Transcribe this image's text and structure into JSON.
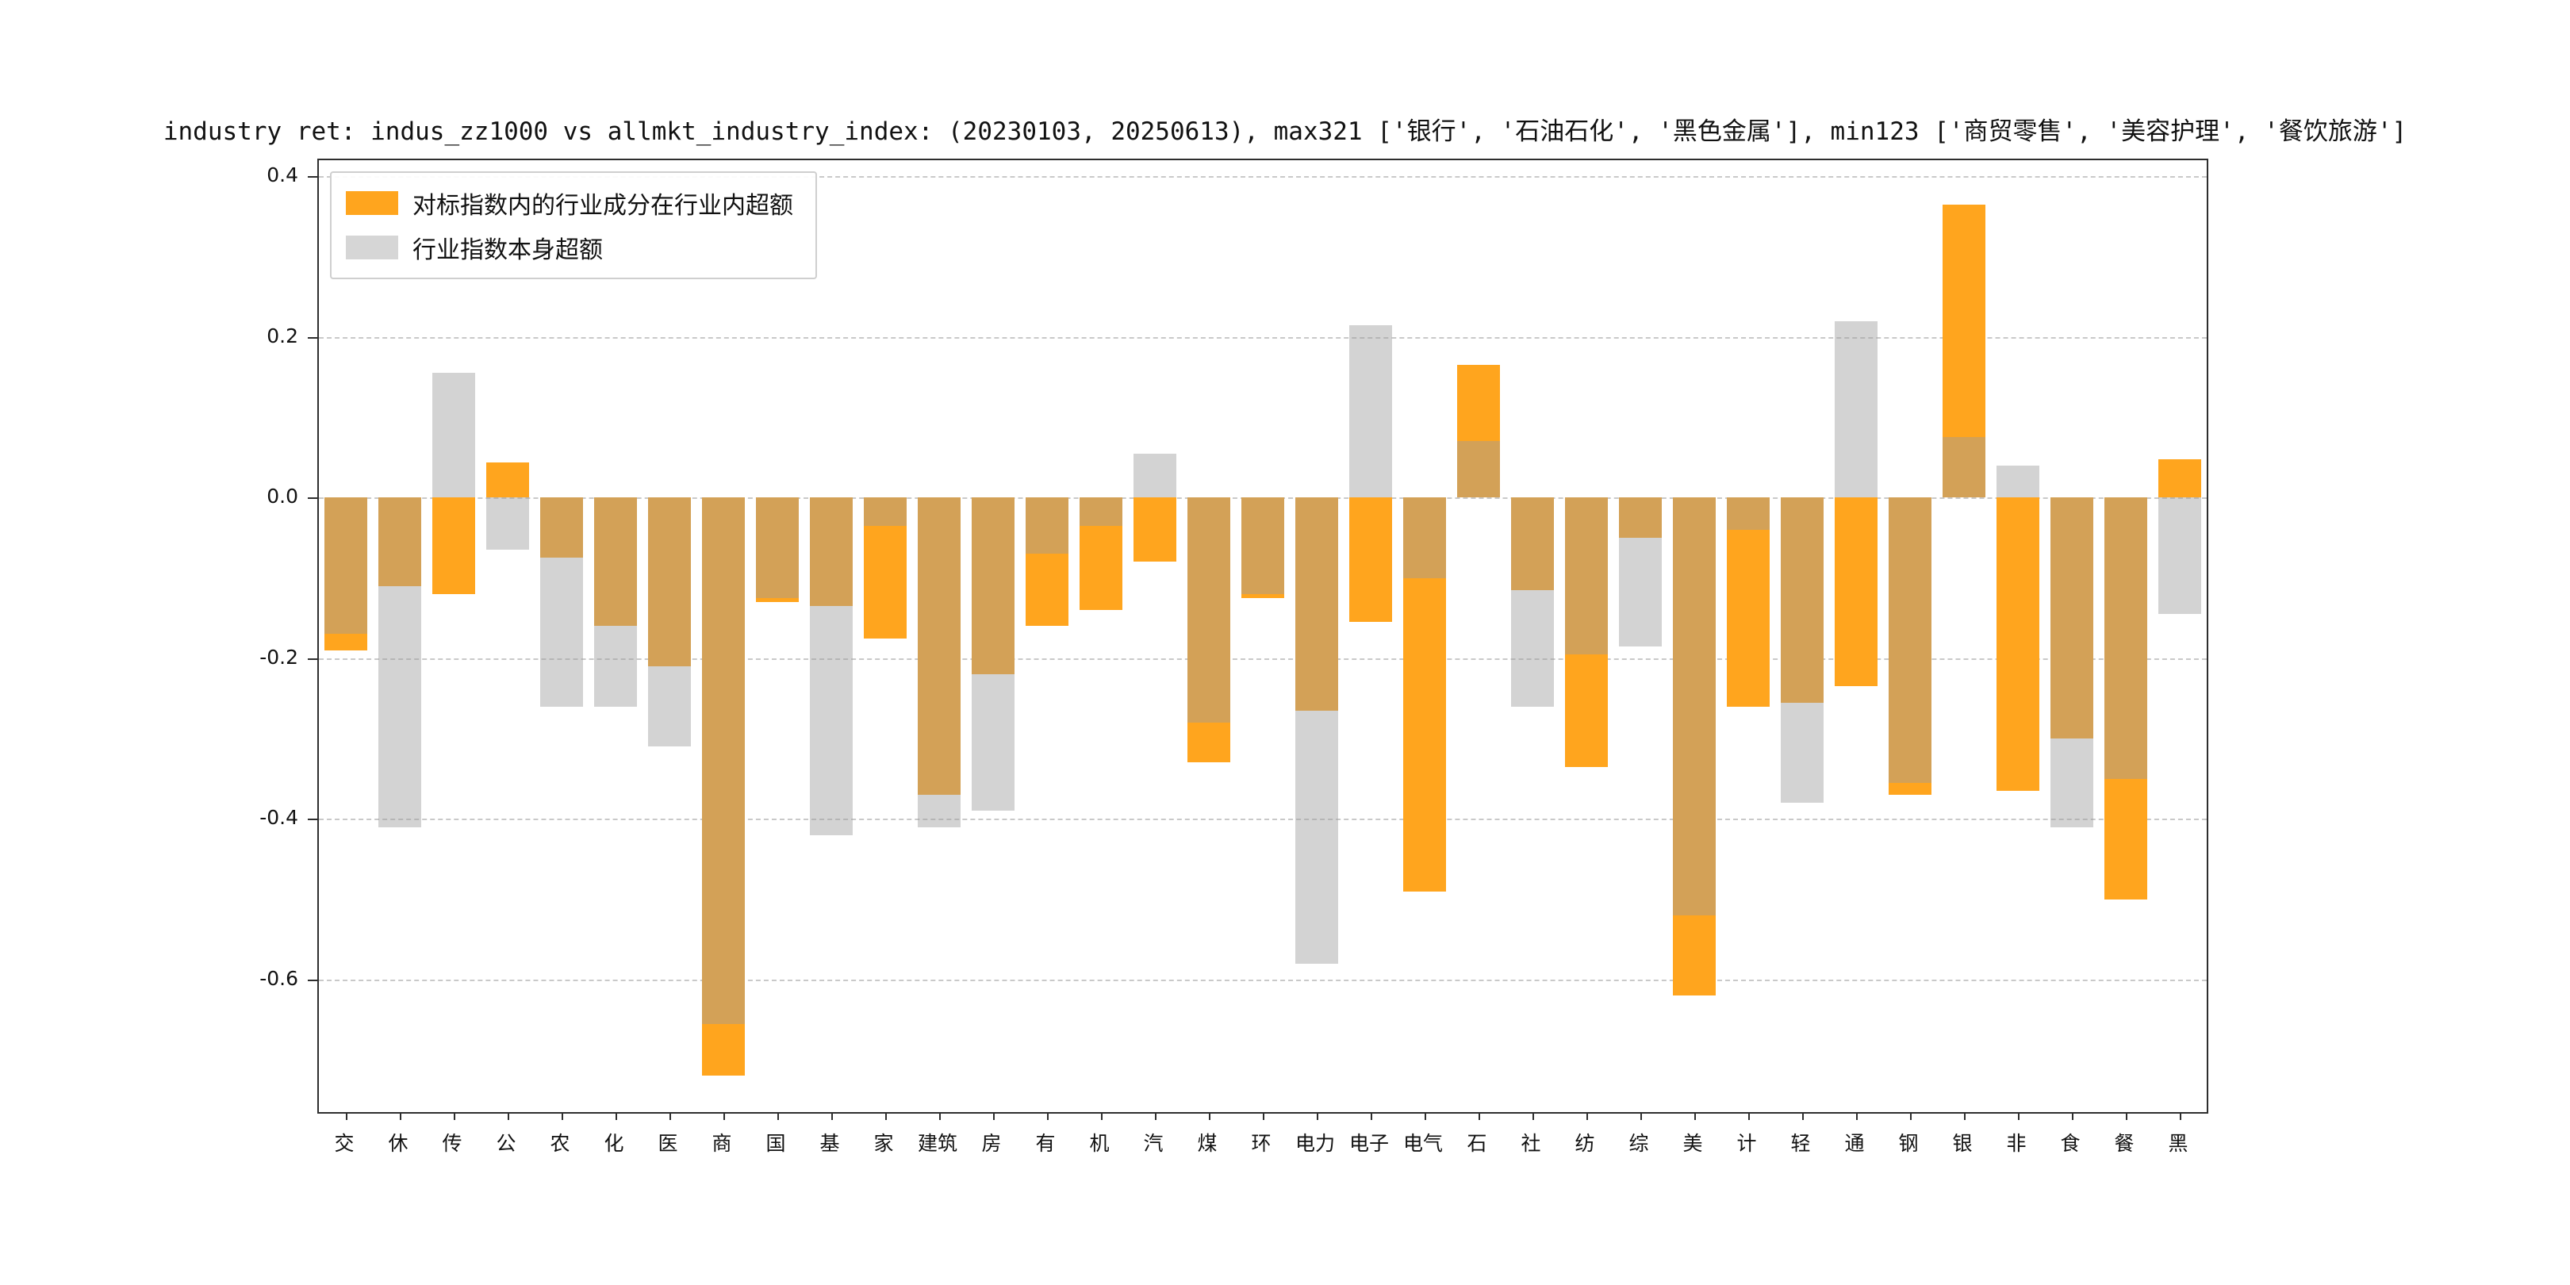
{
  "title": "industry ret: indus_zz1000 vs allmkt_industry_index: (20230103, 20250613), max321 ['银行', '石油石化', '黑色金属'], min123 ['商贸零售', '美容护理', '餐饮旅游']",
  "legend": {
    "entries": [
      {
        "label": "对标指数内的行业成分在行业内超额",
        "color": "#FFA51E"
      },
      {
        "label": "行业指数本身超额",
        "color": "#D6D6D6"
      }
    ]
  },
  "chart_data": {
    "type": "bar",
    "layout": "overlaid-from-zero",
    "grid": "horizontal dashed",
    "legend_position": "upper-left",
    "categories": [
      "交",
      "休",
      "传",
      "公",
      "农",
      "化",
      "医",
      "商",
      "国",
      "基",
      "家",
      "建筑",
      "房",
      "有",
      "机",
      "汽",
      "煤",
      "环",
      "电力",
      "电子",
      "电气",
      "石",
      "社",
      "纺",
      "综",
      "美",
      "计",
      "轻",
      "通",
      "钢",
      "银",
      "非",
      "食",
      "餐",
      "黑"
    ],
    "series": [
      {
        "key": "orange",
        "name": "对标指数内的行业成分在行业内超额",
        "color": "#FFA51E",
        "legend_color": "#FFA51E",
        "values": [
          -0.19,
          -0.11,
          -0.12,
          0.044,
          -0.075,
          -0.16,
          -0.21,
          -0.72,
          -0.13,
          -0.135,
          -0.175,
          -0.37,
          -0.22,
          -0.16,
          -0.14,
          -0.08,
          -0.33,
          -0.125,
          -0.265,
          -0.155,
          -0.49,
          0.165,
          -0.115,
          -0.335,
          -0.05,
          -0.62,
          -0.26,
          -0.255,
          -0.235,
          -0.37,
          0.365,
          -0.365,
          -0.3,
          -0.5,
          0.048
        ]
      },
      {
        "key": "gray",
        "name": "行业指数本身超额",
        "color": "#D6D6D6",
        "legend_color": "#D6D6D6",
        "values": [
          -0.17,
          -0.41,
          0.155,
          -0.065,
          -0.26,
          -0.26,
          -0.31,
          -0.655,
          -0.125,
          -0.42,
          -0.035,
          -0.41,
          -0.39,
          -0.07,
          -0.035,
          0.055,
          -0.28,
          -0.12,
          -0.58,
          0.215,
          -0.1,
          0.07,
          -0.26,
          -0.195,
          -0.185,
          -0.52,
          -0.04,
          -0.38,
          0.22,
          -0.355,
          0.075,
          0.04,
          -0.41,
          -0.35,
          -0.145
        ]
      }
    ],
    "yticks": [
      0.4,
      0.2,
      0.0,
      -0.2,
      -0.4,
      -0.6
    ],
    "ytick_labels": [
      "0.4",
      "0.2",
      "0.0",
      "-0.2",
      "-0.4",
      "-0.6"
    ],
    "ylim": [
      -0.765,
      0.42
    ],
    "xlabel": "",
    "ylabel": ""
  }
}
